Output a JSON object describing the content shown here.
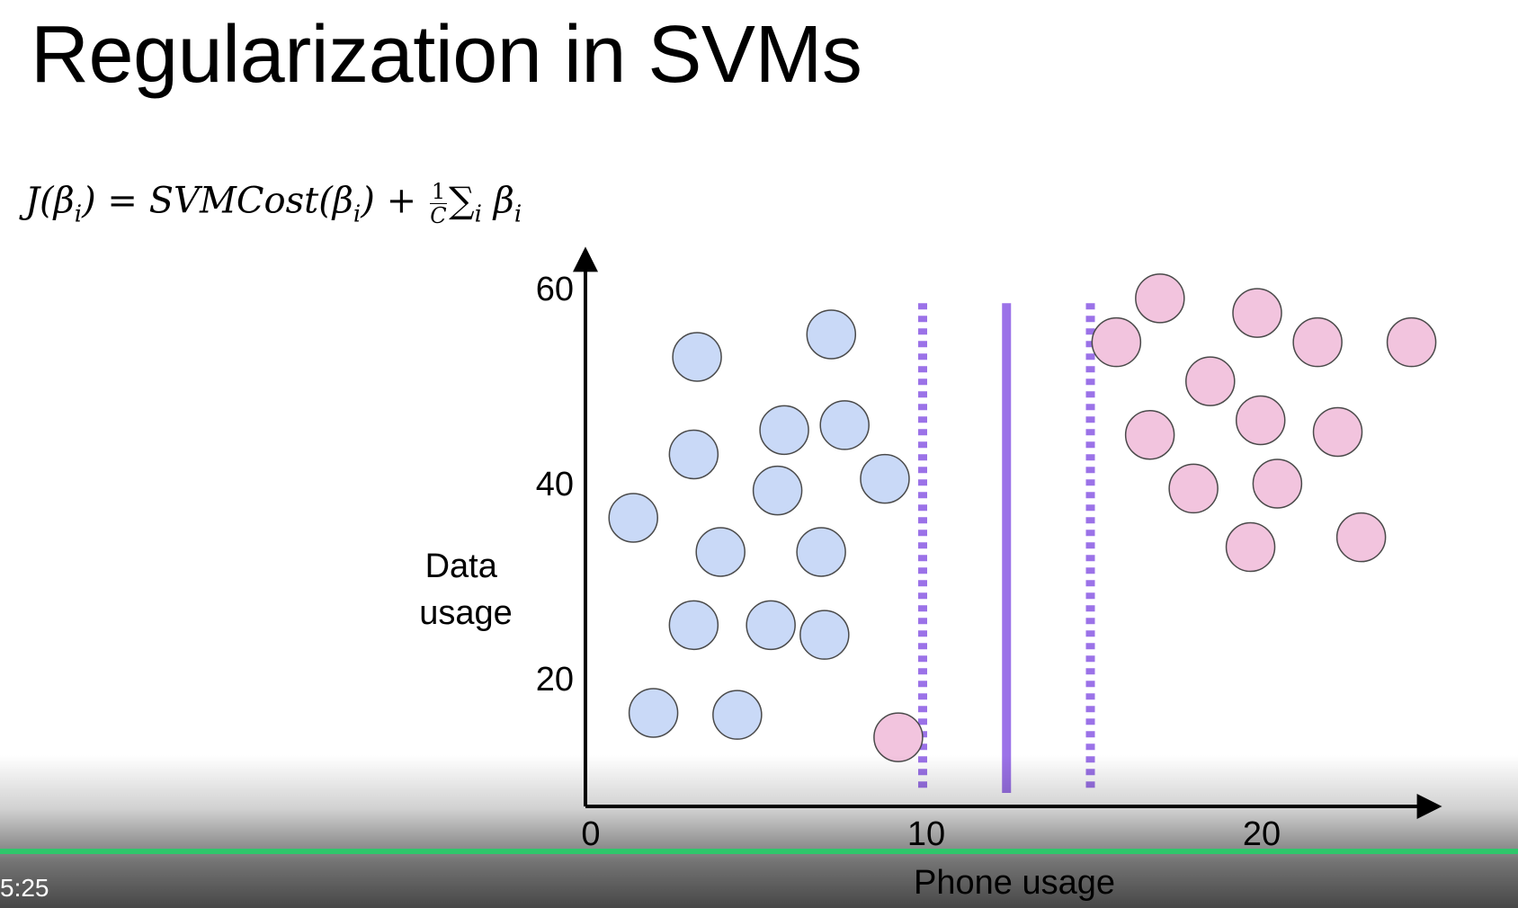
{
  "slide": {
    "title": "Regularization in SVMs"
  },
  "formula": {
    "lhs": "J(β",
    "lhs_sub": "i",
    "lhs_close": ")",
    "equals": " = ",
    "cost": "SVMCost(β",
    "cost_sub": "i",
    "cost_close": ")",
    "plus": " + ",
    "frac_num": "1",
    "frac_den": "C",
    "sum": "∑",
    "sum_sub": "i",
    "beta": " β",
    "beta_sub": "i"
  },
  "colors": {
    "class_a_fill": "#c9d9f7",
    "class_b_fill": "#f2c4de",
    "boundary": "#9b72e8",
    "axis": "#000000"
  },
  "chart_data": {
    "type": "scatter",
    "title": "",
    "xlabel": "Phone usage",
    "ylabel_lines": [
      "Data",
      "usage"
    ],
    "xlim": [
      0,
      25.5
    ],
    "ylim": [
      7,
      63
    ],
    "x_ticks": [
      0,
      10,
      20
    ],
    "y_ticks": [
      20,
      40,
      60
    ],
    "series": [
      {
        "class": "a",
        "points": [
          {
            "x": 1.4,
            "y": 36.5
          },
          {
            "x": 3.3,
            "y": 53
          },
          {
            "x": 3.2,
            "y": 43
          },
          {
            "x": 4.0,
            "y": 33
          },
          {
            "x": 3.2,
            "y": 25.5
          },
          {
            "x": 2.0,
            "y": 16.5
          },
          {
            "x": 4.5,
            "y": 16.3
          },
          {
            "x": 5.5,
            "y": 25.5
          },
          {
            "x": 5.7,
            "y": 39.3
          },
          {
            "x": 5.9,
            "y": 45.5
          },
          {
            "x": 7.0,
            "y": 33
          },
          {
            "x": 7.1,
            "y": 24.5
          },
          {
            "x": 7.3,
            "y": 55.3
          },
          {
            "x": 7.7,
            "y": 46
          },
          {
            "x": 8.9,
            "y": 40.5
          }
        ]
      },
      {
        "class": "b",
        "points": [
          {
            "x": 9.3,
            "y": 14
          },
          {
            "x": 15.8,
            "y": 54.5
          },
          {
            "x": 16.8,
            "y": 45
          },
          {
            "x": 17.1,
            "y": 59
          },
          {
            "x": 18.1,
            "y": 39.5
          },
          {
            "x": 18.6,
            "y": 50.5
          },
          {
            "x": 20.0,
            "y": 57.5
          },
          {
            "x": 20.1,
            "y": 46.5
          },
          {
            "x": 19.8,
            "y": 33.5
          },
          {
            "x": 20.6,
            "y": 40
          },
          {
            "x": 21.8,
            "y": 54.5
          },
          {
            "x": 22.4,
            "y": 45.3
          },
          {
            "x": 23.1,
            "y": 34.5
          },
          {
            "x": 24.6,
            "y": 54.5
          }
        ]
      }
    ],
    "decision_boundary": {
      "x": 12.5,
      "style": "solid"
    },
    "margin_lines": [
      {
        "x": 10,
        "style": "dotted"
      },
      {
        "x": 15,
        "style": "dotted"
      }
    ]
  },
  "player": {
    "time": "5:25",
    "progress": 1.0
  }
}
